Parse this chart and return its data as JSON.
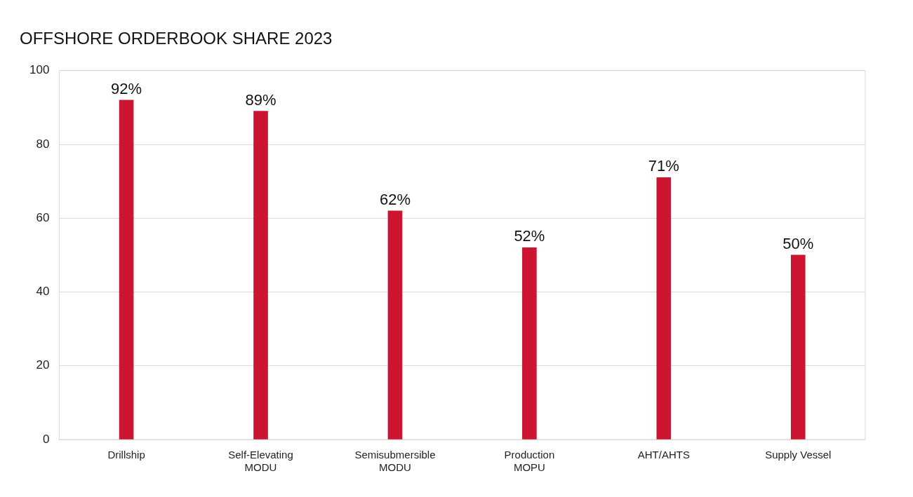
{
  "chart_data": {
    "type": "bar",
    "title": "OFFSHORE ORDERBOOK SHARE 2023",
    "categories": [
      "Drillship",
      "Self-Elevating\nMODU",
      "Semisubmersible\nMODU",
      "Production\nMOPU",
      "AHT/AHTS",
      "Supply Vessel"
    ],
    "values": [
      92,
      89,
      62,
      52,
      71,
      50
    ],
    "value_labels": [
      "92%",
      "89%",
      "62%",
      "52%",
      "71%",
      "50%"
    ],
    "color": "#cc1530",
    "ylim": [
      0,
      100
    ],
    "yticks": [
      0,
      20,
      40,
      60,
      80,
      100
    ],
    "grid": "y",
    "legend": false
  }
}
